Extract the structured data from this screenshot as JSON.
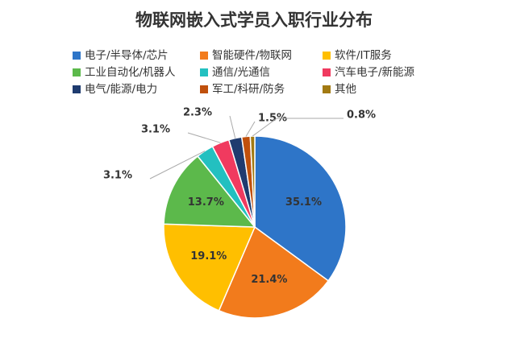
{
  "chart_data": {
    "type": "pie",
    "title": "物联网嵌入式学员入职行业分布",
    "categories": [
      "电子/半导体/芯片",
      "智能硬件/物联网",
      "软件/IT服务",
      "工业自动化/机器人",
      "通信/光通信",
      "汽车电子/新能源",
      "电气/能源/电力",
      "军工/科研/防务",
      "其他"
    ],
    "values": [
      35.1,
      21.4,
      19.1,
      13.7,
      3.1,
      3.1,
      2.3,
      1.5,
      0.8
    ],
    "value_labels": [
      "35.1%",
      "21.4%",
      "19.1%",
      "13.7%",
      "3.1%",
      "3.1%",
      "2.3%",
      "1.5%",
      "0.8%"
    ],
    "colors": [
      "#2e75c8",
      "#f27b1c",
      "#ffbf00",
      "#5cb94b",
      "#23c0c0",
      "#f03a5f",
      "#1f3b6f",
      "#c0500c",
      "#a27a12"
    ]
  }
}
